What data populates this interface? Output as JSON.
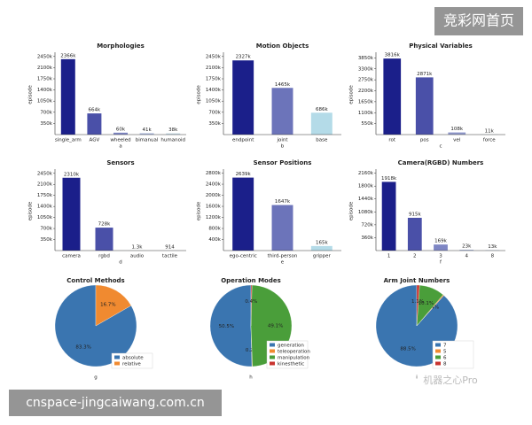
{
  "chart_data": [
    {
      "type": "bar",
      "title": "Morphologies",
      "xlabel": "a",
      "ylabel": "episode",
      "categories": [
        "single_arm",
        "AGV",
        "wheeled",
        "bimanual",
        "humanoid"
      ],
      "values": [
        2366000,
        664000,
        60000,
        41000,
        38000
      ],
      "value_labels": [
        "2366k",
        "664k",
        "60k",
        "41k",
        "38k"
      ],
      "colors": [
        "#1b1f8a",
        "#4a50a8",
        "#7e86c4",
        "#a8b6dc",
        "#c4dbe8"
      ],
      "ylim": [
        0,
        2500000
      ],
      "yticks": [
        {
          "value": 350000,
          "label": "350k"
        },
        {
          "value": 700000,
          "label": "700k"
        },
        {
          "value": 1050000,
          "label": "1050k"
        },
        {
          "value": 1400000,
          "label": "1400k"
        },
        {
          "value": 1750000,
          "label": "1750k"
        },
        {
          "value": 2100000,
          "label": "2100k"
        },
        {
          "value": 2450000,
          "label": "2450k"
        }
      ]
    },
    {
      "type": "bar",
      "title": "Motion Objects",
      "xlabel": "b",
      "ylabel": "episode",
      "categories": [
        "endpoint",
        "joint",
        "base"
      ],
      "values": [
        2327000,
        1465000,
        686000
      ],
      "value_labels": [
        "2327k",
        "1465k",
        "686k"
      ],
      "colors": [
        "#1b1f8a",
        "#6c74ba",
        "#b4dbe8"
      ],
      "ylim": [
        0,
        2500000
      ],
      "yticks": [
        {
          "value": 350000,
          "label": "350k"
        },
        {
          "value": 700000,
          "label": "700k"
        },
        {
          "value": 1050000,
          "label": "1050k"
        },
        {
          "value": 1400000,
          "label": "1400k"
        },
        {
          "value": 1750000,
          "label": "1750k"
        },
        {
          "value": 2100000,
          "label": "2100k"
        },
        {
          "value": 2450000,
          "label": "2450k"
        }
      ]
    },
    {
      "type": "bar",
      "title": "Physical Variables",
      "xlabel": "c",
      "ylabel": "episode",
      "categories": [
        "rot",
        "pos",
        "vel",
        "force"
      ],
      "values": [
        3816000,
        2871000,
        108000,
        11000
      ],
      "value_labels": [
        "3816k",
        "2871k",
        "108k",
        "11k"
      ],
      "colors": [
        "#1b1f8a",
        "#4a50a8",
        "#8f98cc",
        "#c4dbe8"
      ],
      "ylim": [
        0,
        4000000
      ],
      "yticks": [
        {
          "value": 550000,
          "label": "550k"
        },
        {
          "value": 1100000,
          "label": "1100k"
        },
        {
          "value": 1650000,
          "label": "1650k"
        },
        {
          "value": 2200000,
          "label": "2200k"
        },
        {
          "value": 2750000,
          "label": "2750k"
        },
        {
          "value": 3300000,
          "label": "3300k"
        },
        {
          "value": 3850000,
          "label": "3850k"
        }
      ]
    },
    {
      "type": "bar",
      "title": "Sensors",
      "xlabel": "d",
      "ylabel": "episode",
      "categories": [
        "camera",
        "rgbd",
        "audio",
        "tactile"
      ],
      "values": [
        2310000,
        728000,
        1300,
        914
      ],
      "value_labels": [
        "2310k",
        "728k",
        "1.3k",
        "914"
      ],
      "colors": [
        "#1b1f8a",
        "#4a50a8",
        "#8f98cc",
        "#c4dbe8"
      ],
      "ylim": [
        0,
        2500000
      ],
      "yticks": [
        {
          "value": 350000,
          "label": "350k"
        },
        {
          "value": 700000,
          "label": "700k"
        },
        {
          "value": 1050000,
          "label": "1050k"
        },
        {
          "value": 1400000,
          "label": "1400k"
        },
        {
          "value": 1750000,
          "label": "1750k"
        },
        {
          "value": 2100000,
          "label": "2100k"
        },
        {
          "value": 2450000,
          "label": "2450k"
        }
      ]
    },
    {
      "type": "bar",
      "title": "Sensor Positions",
      "xlabel": "e",
      "ylabel": "episode",
      "categories": [
        "ego-centric",
        "third-person",
        "gripper"
      ],
      "values": [
        2639000,
        1647000,
        165000
      ],
      "value_labels": [
        "2639k",
        "1647k",
        "165k"
      ],
      "colors": [
        "#1b1f8a",
        "#6c74ba",
        "#b4dbe8"
      ],
      "ylim": [
        0,
        2850000
      ],
      "yticks": [
        {
          "value": 400000,
          "label": "400k"
        },
        {
          "value": 800000,
          "label": "800k"
        },
        {
          "value": 1200000,
          "label": "1200k"
        },
        {
          "value": 1600000,
          "label": "1600k"
        },
        {
          "value": 2000000,
          "label": "2000k"
        },
        {
          "value": 2400000,
          "label": "2400k"
        },
        {
          "value": 2800000,
          "label": "2800k"
        }
      ]
    },
    {
      "type": "bar",
      "title": "Camera(RGBD) Numbers",
      "xlabel": "f",
      "ylabel": "episode",
      "categories": [
        "1",
        "2",
        "3",
        "4",
        "8"
      ],
      "values": [
        1918000,
        915000,
        169000,
        23000,
        13000
      ],
      "value_labels": [
        "1918k",
        "915k",
        "169k",
        "23k",
        "13k"
      ],
      "colors": [
        "#1b1f8a",
        "#4a50a8",
        "#7e86c4",
        "#a8b6dc",
        "#c4dbe8"
      ],
      "ylim": [
        0,
        2200000
      ],
      "yticks": [
        {
          "value": 360000,
          "label": "360k"
        },
        {
          "value": 720000,
          "label": "720k"
        },
        {
          "value": 1080000,
          "label": "1080k"
        },
        {
          "value": 1440000,
          "label": "1440k"
        },
        {
          "value": 1800000,
          "label": "1800k"
        },
        {
          "value": 2160000,
          "label": "2160k"
        }
      ]
    },
    {
      "type": "pie",
      "title": "Control Methods",
      "xlabel": "g",
      "legend": "lower right",
      "categories": [
        "absolute",
        "relative"
      ],
      "values": [
        83.3,
        16.7
      ],
      "value_labels": [
        "83.3%",
        "16.7%"
      ],
      "colors": [
        "#3a75b0",
        "#f08a30"
      ]
    },
    {
      "type": "pie",
      "title": "Operation Modes",
      "xlabel": "h",
      "legend": "lower right",
      "categories": [
        "generation",
        "teleoperation",
        "manipulation",
        "kinesthetic"
      ],
      "values": [
        50.5,
        0.2,
        49.1,
        0.4
      ],
      "value_labels": [
        "50.5%",
        "0.2%",
        "49.1%",
        "0.4%"
      ],
      "colors": [
        "#3a75b0",
        "#f08a30",
        "#4a9e3a",
        "#c8332e"
      ]
    },
    {
      "type": "pie",
      "title": "Arm Joint Numbers",
      "xlabel": "i",
      "legend": "lower right",
      "categories": [
        "7",
        "5",
        "6",
        "8"
      ],
      "values": [
        88.5,
        0.4,
        10.1,
        1.1
      ],
      "value_labels": [
        "88.5%",
        "0.4%",
        "10.1%",
        "1.1%"
      ],
      "colors": [
        "#3a75b0",
        "#f08a30",
        "#4a9e3a",
        "#c8332e"
      ]
    }
  ],
  "watermarks": {
    "top": "竞彩网首页",
    "bottom": "cnspace-jingcaiwang.com.cn",
    "logo": "机器之心Pro"
  }
}
